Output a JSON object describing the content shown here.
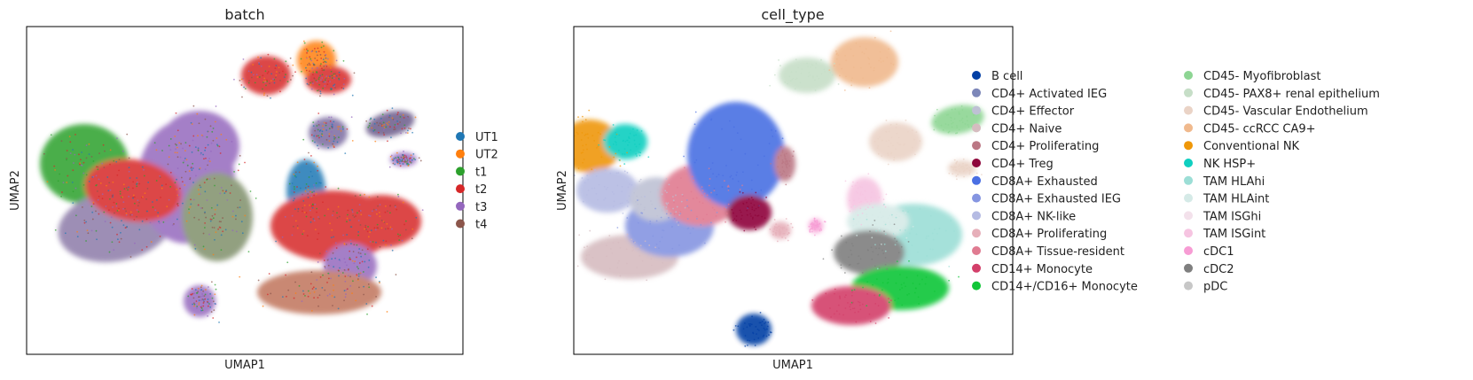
{
  "chart_data": [
    {
      "type": "scatter",
      "subtype": "umap-embedding",
      "title": "batch",
      "xlabel": "UMAP1",
      "ylabel": "UMAP2",
      "grid": false,
      "ticks": false,
      "legend_position": "right",
      "legend_columns": 1,
      "series": [
        {
          "name": "UT1",
          "color": "#1f77b4"
        },
        {
          "name": "UT2",
          "color": "#ff7f0e"
        },
        {
          "name": "t1",
          "color": "#2ca02c"
        },
        {
          "name": "t2",
          "color": "#d62728"
        },
        {
          "name": "t3",
          "color": "#9467bd"
        },
        {
          "name": "t4",
          "color": "#8c564b"
        }
      ]
    },
    {
      "type": "scatter",
      "subtype": "umap-embedding",
      "title": "cell_type",
      "xlabel": "UMAP1",
      "ylabel": "UMAP2",
      "grid": false,
      "ticks": false,
      "legend_position": "right",
      "legend_columns": 2,
      "series": [
        {
          "name": "B cell",
          "color": "#023fa5"
        },
        {
          "name": "CD4+ Activated IEG",
          "color": "#7d87b9"
        },
        {
          "name": "CD4+ Effector",
          "color": "#bec1d4"
        },
        {
          "name": "CD4+ Naive",
          "color": "#d6bcc0"
        },
        {
          "name": "CD4+ Proliferating",
          "color": "#bb7784"
        },
        {
          "name": "CD4+ Treg",
          "color": "#8e063b"
        },
        {
          "name": "CD8A+ Exhausted",
          "color": "#4a6fe3"
        },
        {
          "name": "CD8A+ Exhausted IEG",
          "color": "#8595e1"
        },
        {
          "name": "CD8A+ NK-like",
          "color": "#b5bbe3"
        },
        {
          "name": "CD8A+ Proliferating",
          "color": "#e6afb9"
        },
        {
          "name": "CD8A+ Tissue-resident",
          "color": "#e07b91"
        },
        {
          "name": "CD14+ Monocyte",
          "color": "#d33f6a"
        },
        {
          "name": "CD14+/CD16+ Monocyte",
          "color": "#11c638"
        },
        {
          "name": "CD45- Myofibroblast",
          "color": "#8dd593"
        },
        {
          "name": "CD45- PAX8+ renal epithelium",
          "color": "#c6dec7"
        },
        {
          "name": "CD45- Vascular Endothelium",
          "color": "#ead3c6"
        },
        {
          "name": "CD45- ccRCC CA9+",
          "color": "#f0b98d"
        },
        {
          "name": "Conventional NK",
          "color": "#ef9708"
        },
        {
          "name": "NK HSP+",
          "color": "#0fcfc0"
        },
        {
          "name": "TAM HLAhi",
          "color": "#9cded6"
        },
        {
          "name": "TAM HLAint",
          "color": "#d5eae7"
        },
        {
          "name": "TAM ISGhi",
          "color": "#f3e1eb"
        },
        {
          "name": "TAM ISGint",
          "color": "#f6c4e1"
        },
        {
          "name": "cDC1",
          "color": "#f79cd4"
        },
        {
          "name": "cDC2",
          "color": "#7f7f7f"
        },
        {
          "name": "pDC",
          "color": "#c7c7c7"
        }
      ]
    }
  ]
}
